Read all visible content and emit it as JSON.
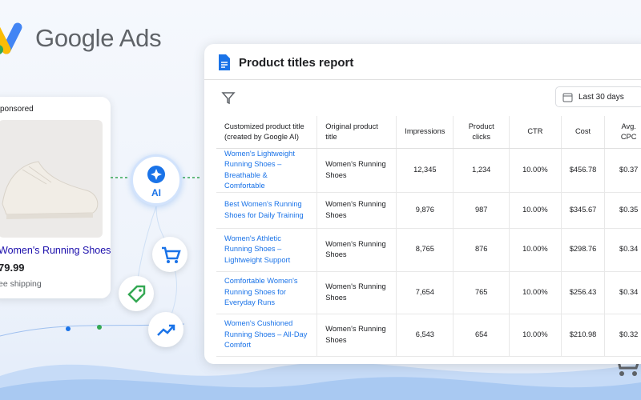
{
  "brand": {
    "name": "Google Ads"
  },
  "product_card": {
    "label": "ponsored",
    "name": "Women's Running Shoes",
    "price": "79.99",
    "shipping": "ee shipping"
  },
  "ai_badge": "AI",
  "report": {
    "title": "Product titles report",
    "date_range": "Last 30 days"
  },
  "table": {
    "header_note": "(created by Google AI)",
    "headers": [
      "Customized product title",
      "Original product title",
      "Impressions",
      "Product clicks",
      "CTR",
      "Cost",
      "Avg. CPC"
    ],
    "rows": [
      [
        "Women's Lightweight Running Shoes – Breathable & Comfortable",
        "Women's Running Shoes",
        "12,345",
        "1,234",
        "10.00%",
        "$456.78",
        "$0.37"
      ],
      [
        "Best Women's Running Shoes for Daily Training",
        "Women's Running Shoes",
        "9,876",
        "987",
        "10.00%",
        "$345.67",
        "$0.35"
      ],
      [
        "Women's Athletic Running Shoes – Lightweight Support",
        "Women's Running Shoes",
        "8,765",
        "876",
        "10.00%",
        "$298.76",
        "$0.34"
      ],
      [
        "Comfortable Women's Running Shoes for Everyday Runs",
        "Women's Running Shoes",
        "7,654",
        "765",
        "10.00%",
        "$256.43",
        "$0.34"
      ],
      [
        "Women's Cushioned Running Shoes – All-Day Comfort",
        "Women's Running Shoes",
        "6,543",
        "654",
        "10.00%",
        "$210.98",
        "$0.32"
      ]
    ]
  }
}
